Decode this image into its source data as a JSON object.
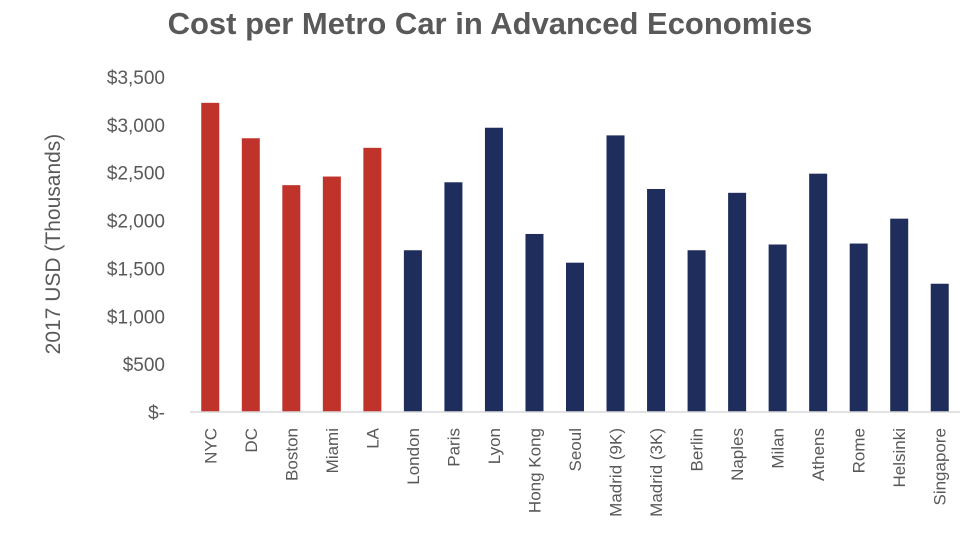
{
  "chart_data": {
    "type": "bar",
    "title": "Cost per Metro Car in Advanced Economies",
    "ylabel": "2017 USD (Thousands)",
    "xlabel": "",
    "ylim": [
      0,
      3500
    ],
    "ytick_values": [
      0,
      500,
      1000,
      1500,
      2000,
      2500,
      3000,
      3500
    ],
    "ytick_labels": [
      "$-",
      "$500",
      "$1,000",
      "$1,500",
      "$2,000",
      "$2,500",
      "$3,000",
      "$3,500"
    ],
    "grid": false,
    "legend": "none",
    "colors": {
      "us": "#c0332b",
      "other": "#1f2d5c",
      "axis": "#d9d9d9",
      "text": "#595959"
    },
    "categories": [
      "NYC",
      "DC",
      "Boston",
      "Miami",
      "LA",
      "London",
      "Paris",
      "Lyon",
      "Hong Kong",
      "Seoul",
      "Madrid (9K)",
      "Madrid (3K)",
      "Berlin",
      "Naples",
      "Milan",
      "Athens",
      "Rome",
      "Helsinki",
      "Singapore"
    ],
    "values": [
      3230,
      2860,
      2370,
      2460,
      2760,
      1690,
      2400,
      2970,
      1860,
      1560,
      2890,
      2330,
      1690,
      2290,
      1750,
      2490,
      1760,
      2020,
      1340
    ],
    "groups": [
      "us",
      "us",
      "us",
      "us",
      "us",
      "other",
      "other",
      "other",
      "other",
      "other",
      "other",
      "other",
      "other",
      "other",
      "other",
      "other",
      "other",
      "other",
      "other"
    ]
  }
}
